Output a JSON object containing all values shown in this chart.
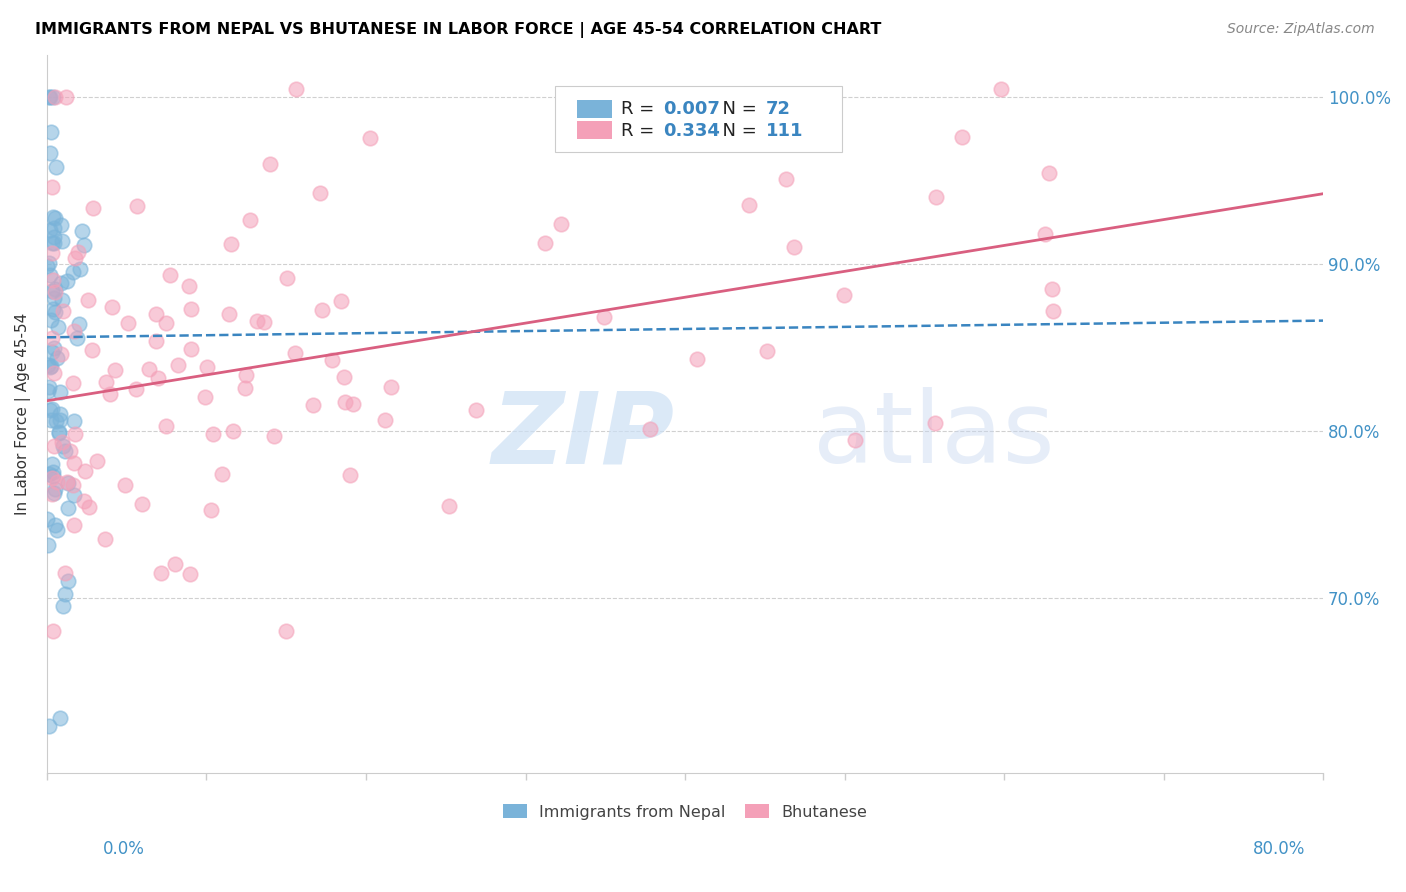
{
  "title": "IMMIGRANTS FROM NEPAL VS BHUTANESE IN LABOR FORCE | AGE 45-54 CORRELATION CHART",
  "source": "Source: ZipAtlas.com",
  "ylabel": "In Labor Force | Age 45-54",
  "right_yticks": [
    0.7,
    0.8,
    0.9,
    1.0
  ],
  "right_yticklabels": [
    "70.0%",
    "80.0%",
    "90.0%",
    "100.0%"
  ],
  "nepal_R": 0.007,
  "nepal_N": 72,
  "bhutan_R": 0.334,
  "bhutan_N": 111,
  "nepal_color": "#7ab3d9",
  "bhutan_color": "#f4a0b8",
  "nepal_trend_color": "#3a85c0",
  "bhutan_trend_color": "#d95f80",
  "xlim": [
    0.0,
    0.8
  ],
  "ylim": [
    0.595,
    1.025
  ],
  "nepal_trend_start": 0.0,
  "nepal_trend_end": 0.8,
  "bhutan_trend_start": 0.0,
  "bhutan_trend_end": 0.8,
  "nepal_trend_y0": 0.856,
  "nepal_trend_y1": 0.866,
  "bhutan_trend_y0": 0.818,
  "bhutan_trend_y1": 0.942
}
